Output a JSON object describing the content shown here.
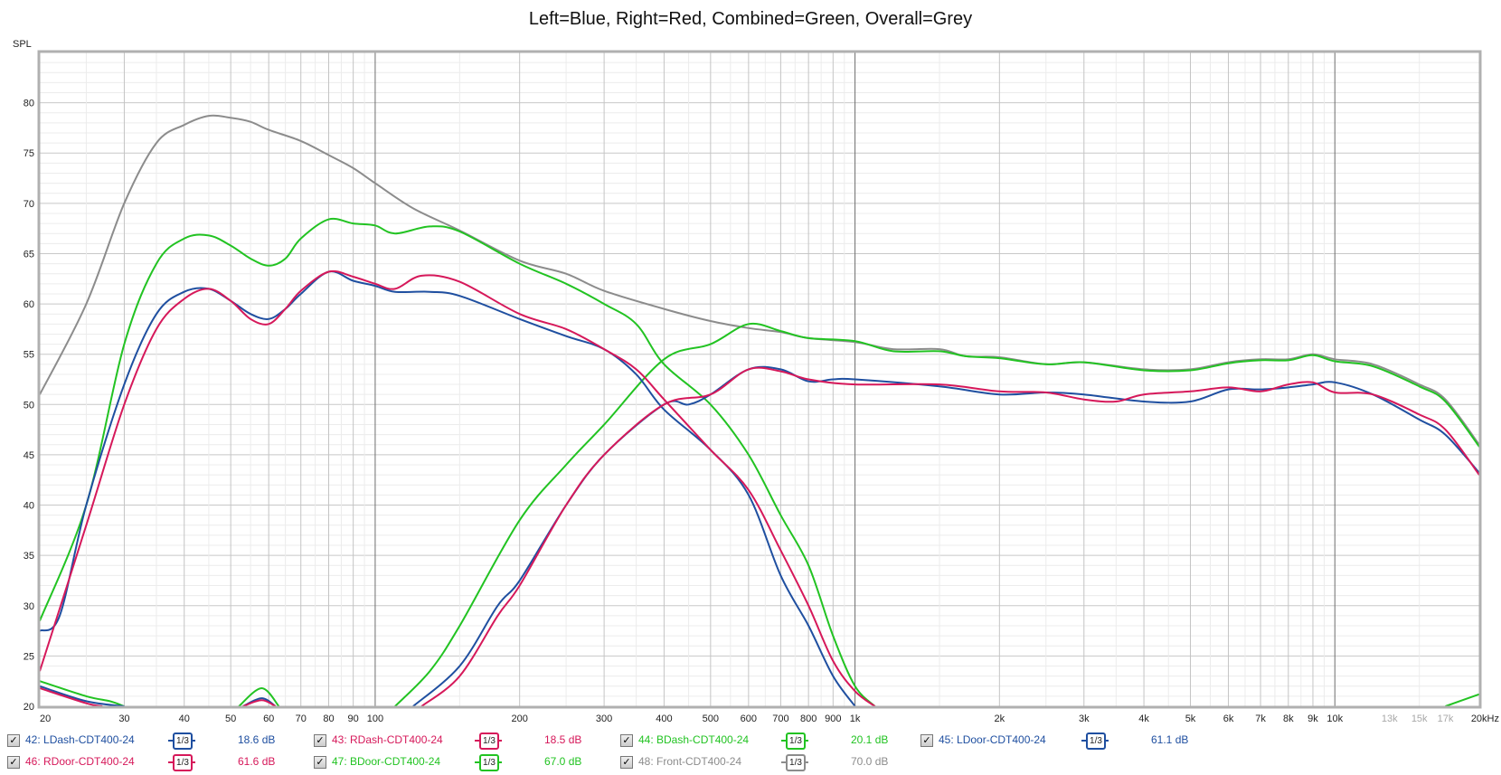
{
  "chart_data": {
    "type": "line",
    "title": "Left=Blue, Right=Red, Combined=Green, Overall=Grey",
    "ylabel": "SPL",
    "xlabel": "",
    "x_unit": "kHz",
    "x_scale": "log",
    "xlim": [
      20,
      20000
    ],
    "ylim": [
      20,
      85
    ],
    "grid": true,
    "y_ticks": [
      20,
      25,
      30,
      35,
      40,
      45,
      50,
      55,
      60,
      65,
      70,
      75,
      80
    ],
    "x_ticks": [
      {
        "v": 20,
        "label": "20"
      },
      {
        "v": 30,
        "label": "30"
      },
      {
        "v": 40,
        "label": "40"
      },
      {
        "v": 50,
        "label": "50"
      },
      {
        "v": 60,
        "label": "60"
      },
      {
        "v": 70,
        "label": "70"
      },
      {
        "v": 80,
        "label": "80"
      },
      {
        "v": 90,
        "label": "90"
      },
      {
        "v": 100,
        "label": "100"
      },
      {
        "v": 200,
        "label": "200"
      },
      {
        "v": 300,
        "label": "300"
      },
      {
        "v": 400,
        "label": "400"
      },
      {
        "v": 500,
        "label": "500"
      },
      {
        "v": 600,
        "label": "600"
      },
      {
        "v": 700,
        "label": "700"
      },
      {
        "v": 800,
        "label": "800"
      },
      {
        "v": 900,
        "label": "900"
      },
      {
        "v": 1000,
        "label": "1k"
      },
      {
        "v": 2000,
        "label": "2k"
      },
      {
        "v": 3000,
        "label": "3k"
      },
      {
        "v": 4000,
        "label": "4k"
      },
      {
        "v": 5000,
        "label": "5k"
      },
      {
        "v": 6000,
        "label": "6k"
      },
      {
        "v": 7000,
        "label": "7k"
      },
      {
        "v": 8000,
        "label": "8k"
      },
      {
        "v": 9000,
        "label": "9k"
      },
      {
        "v": 10000,
        "label": "10k"
      },
      {
        "v": 13000,
        "label": "13k",
        "faint": true
      },
      {
        "v": 15000,
        "label": "15k",
        "faint": true
      },
      {
        "v": 17000,
        "label": "17k",
        "faint": true
      },
      {
        "v": 20000,
        "label": "20kHz"
      }
    ],
    "series": [
      {
        "name": "48: Front-CDT400-24",
        "color": "#8c8c8c",
        "x": [
          20,
          25,
          30,
          35,
          40,
          45,
          50,
          55,
          60,
          70,
          80,
          90,
          100,
          120,
          150,
          200,
          250,
          300,
          400,
          500,
          600,
          700,
          800,
          1000,
          1200,
          1500,
          1700,
          2000,
          2500,
          3000,
          4000,
          5000,
          6000,
          7000,
          8000,
          9000,
          10000,
          12000,
          15000,
          17000,
          20000
        ],
        "y": [
          51,
          60,
          70,
          76,
          77.8,
          78.7,
          78.5,
          78.1,
          77.3,
          76.2,
          74.8,
          73.5,
          72,
          69.5,
          67.3,
          64.3,
          63,
          61.3,
          59.5,
          58.3,
          57.6,
          57.2,
          56.6,
          56.2,
          55.5,
          55.5,
          54.8,
          54.7,
          54,
          54.2,
          53.5,
          53.5,
          54.2,
          54.5,
          54.5,
          55,
          54.5,
          54,
          52,
          50.5,
          46
        ]
      },
      {
        "name": "47: BDoor-CDT400-24",
        "color": "#22c322",
        "x": [
          20,
          25,
          30,
          35,
          40,
          45,
          50,
          55,
          60,
          65,
          70,
          80,
          90,
          100,
          110,
          130,
          150,
          200,
          250,
          300,
          350,
          400,
          500,
          600,
          700,
          800,
          900,
          1000,
          1100,
          null,
          17000,
          20000
        ],
        "y": [
          28.5,
          40,
          56,
          64,
          66.5,
          66.8,
          65.8,
          64.5,
          63.8,
          64.5,
          66.5,
          68.4,
          68,
          67.8,
          67,
          67.7,
          67.2,
          64,
          62,
          60,
          58,
          54,
          50,
          45,
          39,
          34,
          27,
          22,
          20,
          null,
          20,
          21.2
        ]
      },
      {
        "name": "44: BDash-CDT400-24",
        "color": "#22c322",
        "x": [
          20,
          25,
          28,
          30,
          null,
          52,
          58,
          63,
          null,
          110,
          130,
          150,
          200,
          250,
          300,
          400,
          500,
          600,
          700,
          800,
          1000,
          1200,
          1500,
          1700,
          2000,
          2500,
          3000,
          4000,
          5000,
          6000,
          7000,
          8000,
          9000,
          10000,
          12000,
          15000,
          17000,
          20000
        ],
        "y": [
          22.5,
          21,
          20.5,
          20,
          null,
          20,
          21.8,
          20,
          null,
          20,
          23.5,
          28,
          38.5,
          44,
          48,
          54.5,
          56,
          58,
          57.3,
          56.6,
          56.3,
          55.3,
          55.3,
          54.8,
          54.6,
          54,
          54.2,
          53.4,
          53.4,
          54.1,
          54.4,
          54.4,
          54.9,
          54.3,
          53.8,
          51.8,
          50.3,
          45.8
        ]
      },
      {
        "name": "45: LDoor-CDT400-24",
        "color": "#1f4fa0",
        "x": [
          20,
          22,
          25,
          30,
          35,
          40,
          45,
          50,
          55,
          60,
          65,
          70,
          80,
          90,
          100,
          110,
          130,
          150,
          200,
          250,
          300,
          350,
          400,
          500,
          600,
          700,
          800,
          900,
          1000
        ],
        "y": [
          27.5,
          29,
          40,
          52,
          59,
          61.2,
          61.5,
          60.3,
          59,
          58.5,
          59.5,
          61,
          63.2,
          62.3,
          61.8,
          61.2,
          61.2,
          60.8,
          58.5,
          56.8,
          55.5,
          53,
          49.5,
          45.5,
          41,
          33,
          28,
          23,
          20
        ]
      },
      {
        "name": "46: RDoor-CDT400-24",
        "color": "#d6185a",
        "x": [
          20,
          25,
          30,
          35,
          40,
          45,
          50,
          55,
          60,
          65,
          70,
          80,
          90,
          100,
          110,
          125,
          150,
          200,
          250,
          300,
          350,
          400,
          500,
          600,
          700,
          800,
          900,
          1000,
          1100
        ],
        "y": [
          23.5,
          38,
          50,
          57.5,
          60.5,
          61.5,
          60.3,
          58.5,
          58,
          59.5,
          61.3,
          63.2,
          62.7,
          62,
          61.5,
          62.8,
          62.2,
          59,
          57.5,
          55.5,
          53.5,
          50.5,
          45.5,
          41.5,
          35.5,
          30,
          24.5,
          21.5,
          20
        ]
      },
      {
        "name": "42: LDash-CDT400-24",
        "color": "#1f4fa0",
        "x": [
          20,
          25,
          30,
          null,
          53,
          58,
          62,
          null,
          120,
          150,
          180,
          200,
          250,
          300,
          400,
          450,
          500,
          600,
          700,
          800,
          900,
          1000,
          1500,
          2000,
          2500,
          3000,
          4000,
          5000,
          6000,
          7000,
          8000,
          9000,
          10000,
          12000,
          15000,
          17000,
          20000
        ],
        "y": [
          22,
          20.5,
          20,
          null,
          20,
          20.8,
          20,
          null,
          20,
          24,
          30,
          32.5,
          40,
          45,
          50,
          50,
          51,
          53.5,
          53.5,
          52.3,
          52.5,
          52.5,
          51.8,
          51,
          51.2,
          51,
          50.3,
          50.3,
          51.5,
          51.5,
          51.7,
          52,
          52.2,
          51,
          48.5,
          47,
          43.2
        ]
      },
      {
        "name": "43: RDash-CDT400-24",
        "color": "#d6185a",
        "x": [
          20,
          25,
          27,
          null,
          53,
          58,
          62,
          null,
          125,
          150,
          180,
          200,
          250,
          300,
          400,
          500,
          600,
          700,
          800,
          1000,
          1500,
          2000,
          2500,
          3000,
          3500,
          4000,
          5000,
          6000,
          7000,
          8000,
          9000,
          10000,
          12000,
          15000,
          17000,
          20000
        ],
        "y": [
          21.8,
          20.3,
          20,
          null,
          20,
          20.6,
          20,
          null,
          20,
          23,
          29,
          32,
          40,
          45,
          50,
          51,
          53.5,
          53.3,
          52.5,
          52,
          52,
          51.3,
          51.2,
          50.5,
          50.3,
          51,
          51.3,
          51.7,
          51.3,
          52,
          52.2,
          51.2,
          51,
          49,
          47.5,
          43
        ]
      }
    ]
  },
  "legend": [
    {
      "label": "42: LDash-CDT400-24",
      "smoothing": "1/3",
      "value": "18.6 dB",
      "color": "#1f4fa0",
      "checked": true
    },
    {
      "label": "43: RDash-CDT400-24",
      "smoothing": "1/3",
      "value": "18.5 dB",
      "color": "#d6185a",
      "checked": true
    },
    {
      "label": "44: BDash-CDT400-24",
      "smoothing": "1/3",
      "value": "20.1 dB",
      "color": "#22c322",
      "checked": true
    },
    {
      "label": "45: LDoor-CDT400-24",
      "smoothing": "1/3",
      "value": "61.1 dB",
      "color": "#1f4fa0",
      "checked": true
    },
    {
      "label": "46: RDoor-CDT400-24",
      "smoothing": "1/3",
      "value": "61.6 dB",
      "color": "#d6185a",
      "checked": true
    },
    {
      "label": "47: BDoor-CDT400-24",
      "smoothing": "1/3",
      "value": "67.0 dB",
      "color": "#22c322",
      "checked": true
    },
    {
      "label": "48: Front-CDT400-24",
      "smoothing": "1/3",
      "value": "70.0 dB",
      "color": "#8c8c8c",
      "checked": true
    }
  ]
}
